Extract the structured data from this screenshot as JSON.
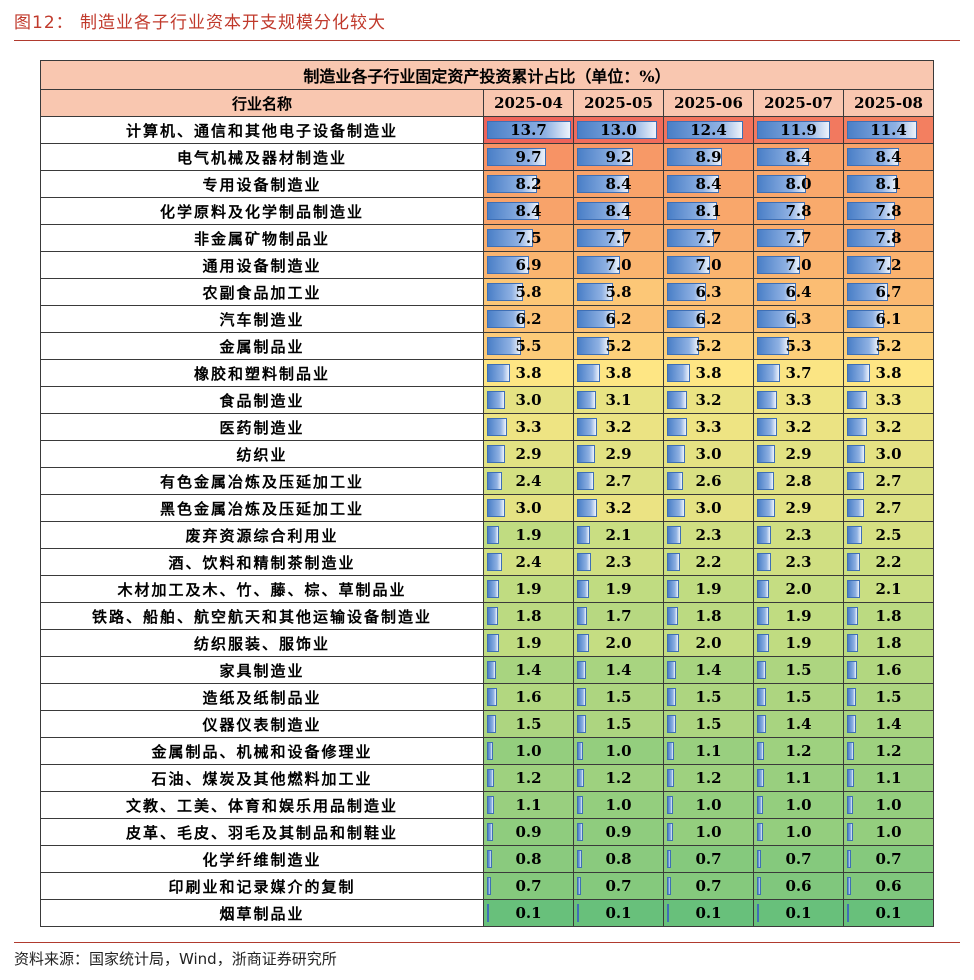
{
  "figure_title": "图12：  制造业各子行业资本开支规模分化较大",
  "source": "资料来源：国家统计局，Wind，浙商证券研究所",
  "table": {
    "caption": "制造业各子行业固定资产投资累计占比（单位：%）",
    "header_name": "行业名称",
    "periods": [
      "2025-04",
      "2025-05",
      "2025-06",
      "2025-07",
      "2025-08"
    ],
    "max_value": 13.7,
    "rows": [
      {
        "name": "计算机、通信和其他电子设备制造业",
        "values": [
          13.7,
          13.0,
          12.4,
          11.9,
          11.4
        ]
      },
      {
        "name": "电气机械及器材制造业",
        "values": [
          9.7,
          9.2,
          8.9,
          8.4,
          8.4
        ]
      },
      {
        "name": "专用设备制造业",
        "values": [
          8.2,
          8.4,
          8.4,
          8.0,
          8.1
        ]
      },
      {
        "name": "化学原料及化学制品制造业",
        "values": [
          8.4,
          8.4,
          8.1,
          7.8,
          7.8
        ]
      },
      {
        "name": "非金属矿物制品业",
        "values": [
          7.5,
          7.7,
          7.7,
          7.7,
          7.8
        ]
      },
      {
        "name": "通用设备制造业",
        "values": [
          6.9,
          7.0,
          7.0,
          7.0,
          7.2
        ]
      },
      {
        "name": "农副食品加工业",
        "values": [
          5.8,
          5.8,
          6.3,
          6.4,
          6.7
        ]
      },
      {
        "name": "汽车制造业",
        "values": [
          6.2,
          6.2,
          6.2,
          6.3,
          6.1
        ]
      },
      {
        "name": "金属制品业",
        "values": [
          5.5,
          5.2,
          5.2,
          5.3,
          5.2
        ]
      },
      {
        "name": "橡胶和塑料制品业",
        "values": [
          3.8,
          3.8,
          3.8,
          3.7,
          3.8
        ]
      },
      {
        "name": "食品制造业",
        "values": [
          3.0,
          3.1,
          3.2,
          3.3,
          3.3
        ]
      },
      {
        "name": "医药制造业",
        "values": [
          3.3,
          3.2,
          3.3,
          3.2,
          3.2
        ]
      },
      {
        "name": "纺织业",
        "values": [
          2.9,
          2.9,
          3.0,
          2.9,
          3.0
        ]
      },
      {
        "name": "有色金属冶炼及压延加工业",
        "values": [
          2.4,
          2.7,
          2.6,
          2.8,
          2.7
        ]
      },
      {
        "name": "黑色金属冶炼及压延加工业",
        "values": [
          3.0,
          3.2,
          3.0,
          2.9,
          2.7
        ]
      },
      {
        "name": "废弃资源综合利用业",
        "values": [
          1.9,
          2.1,
          2.3,
          2.3,
          2.5
        ]
      },
      {
        "name": "酒、饮料和精制茶制造业",
        "values": [
          2.4,
          2.3,
          2.2,
          2.3,
          2.2
        ]
      },
      {
        "name": "木材加工及木、竹、藤、棕、草制品业",
        "values": [
          1.9,
          1.9,
          1.9,
          2.0,
          2.1
        ]
      },
      {
        "name": "铁路、船舶、航空航天和其他运输设备制造业",
        "values": [
          1.8,
          1.7,
          1.8,
          1.9,
          1.8
        ]
      },
      {
        "name": "纺织服装、服饰业",
        "values": [
          1.9,
          2.0,
          2.0,
          1.9,
          1.8
        ]
      },
      {
        "name": "家具制造业",
        "values": [
          1.4,
          1.4,
          1.4,
          1.5,
          1.6
        ]
      },
      {
        "name": "造纸及纸制品业",
        "values": [
          1.6,
          1.5,
          1.5,
          1.5,
          1.5
        ]
      },
      {
        "name": "仪器仪表制造业",
        "values": [
          1.5,
          1.5,
          1.5,
          1.4,
          1.4
        ]
      },
      {
        "name": "金属制品、机械和设备修理业",
        "values": [
          1.0,
          1.0,
          1.1,
          1.2,
          1.2
        ]
      },
      {
        "name": "石油、煤炭及其他燃料加工业",
        "values": [
          1.2,
          1.2,
          1.2,
          1.1,
          1.1
        ]
      },
      {
        "name": "文教、工美、体育和娱乐用品制造业",
        "values": [
          1.1,
          1.0,
          1.0,
          1.0,
          1.0
        ]
      },
      {
        "name": "皮革、毛皮、羽毛及其制品和制鞋业",
        "values": [
          0.9,
          0.9,
          1.0,
          1.0,
          1.0
        ]
      },
      {
        "name": "化学纤维制造业",
        "values": [
          0.8,
          0.8,
          0.7,
          0.7,
          0.7
        ]
      },
      {
        "name": "印刷业和记录媒介的复制",
        "values": [
          0.7,
          0.7,
          0.7,
          0.6,
          0.6
        ]
      },
      {
        "name": "烟草制品业",
        "values": [
          0.1,
          0.1,
          0.1,
          0.1,
          0.1
        ]
      }
    ]
  }
}
